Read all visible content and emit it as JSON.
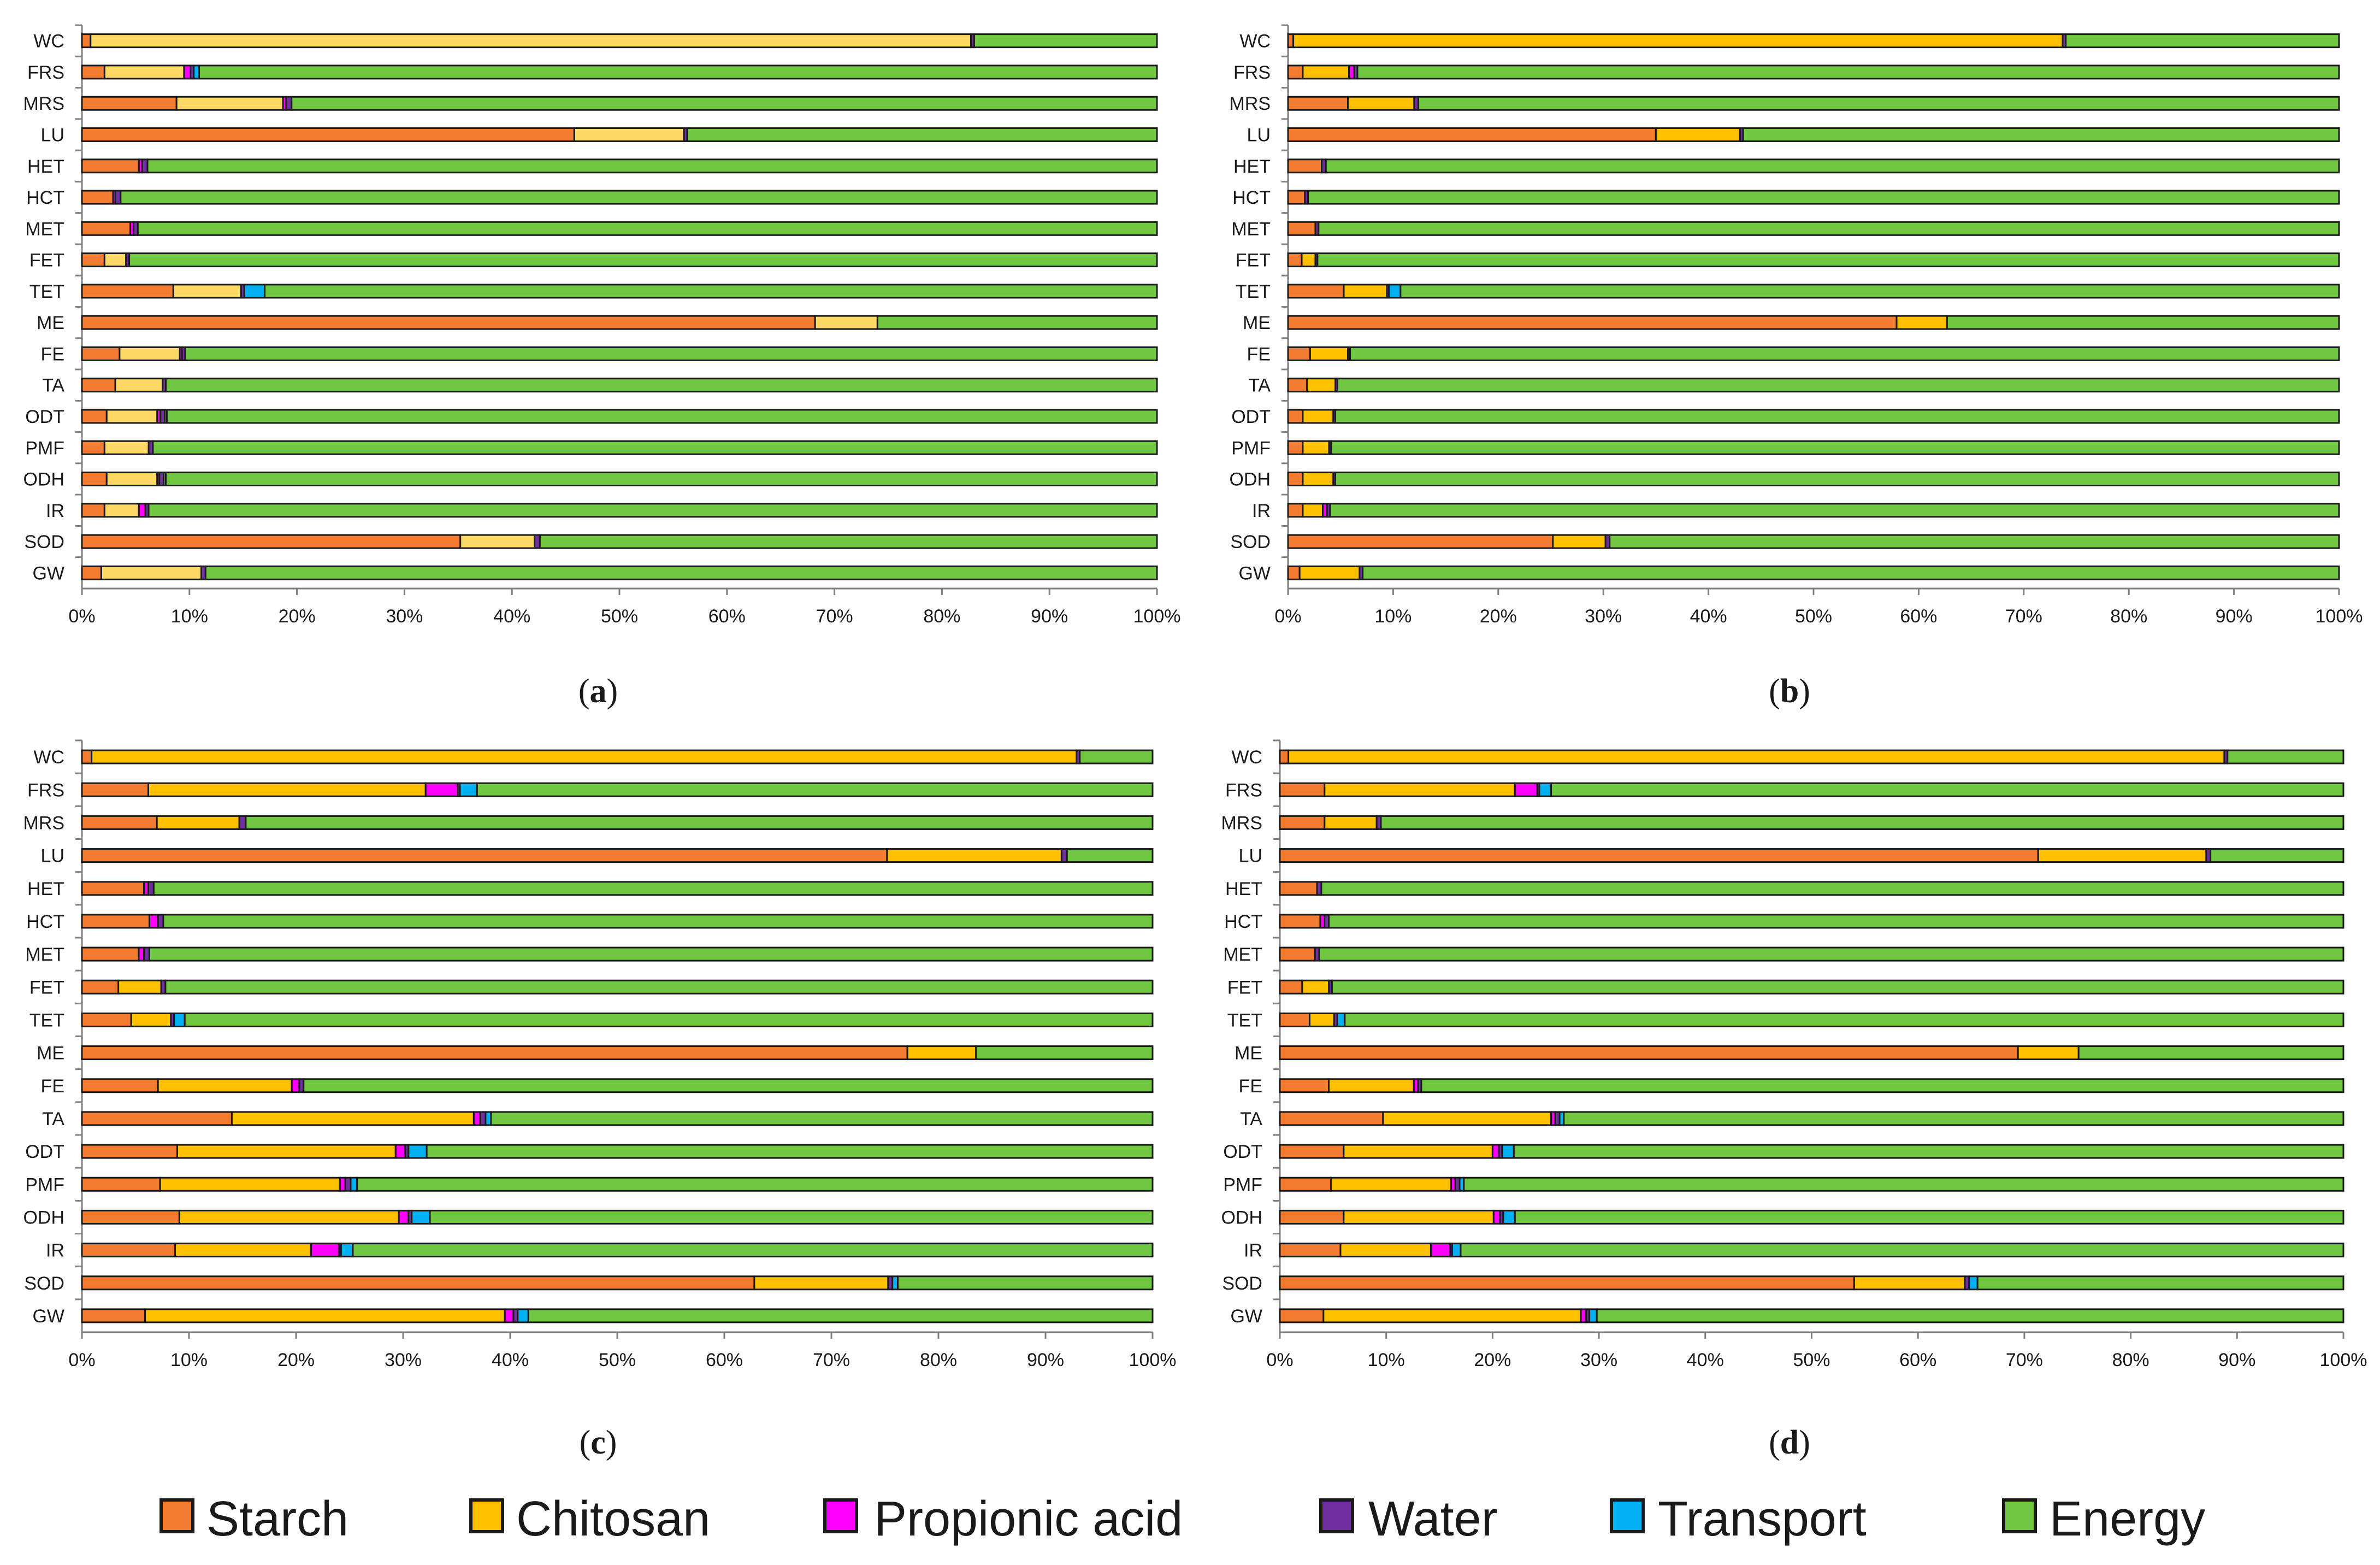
{
  "legend": [
    {
      "name": "Starch",
      "color": "#f47c30"
    },
    {
      "name": "Chitosan",
      "color": "#ffc000"
    },
    {
      "name": "Propionic acid",
      "color": "#ff00ff"
    },
    {
      "name": "Water",
      "color": "#7030a0"
    },
    {
      "name": "Transport",
      "color": "#00b0f0"
    },
    {
      "name": "Energy",
      "color": "#70c840"
    }
  ],
  "chart_data": [
    {
      "type": "bar",
      "panel": "a",
      "categories": [
        "WC",
        "FRS",
        "MRS",
        "LU",
        "HET",
        "HCT",
        "MET",
        "FET",
        "TET",
        "ME",
        "FE",
        "TA",
        "ODT",
        "PMF",
        "ODH",
        "IR",
        "SOD",
        "GW"
      ],
      "xlim": [
        0,
        100
      ],
      "xticks": [
        "0%",
        "10%",
        "20%",
        "30%",
        "40%",
        "50%",
        "60%",
        "70%",
        "80%",
        "90%",
        "100%"
      ],
      "series_colors": [
        "#f47c30",
        "#ffd966",
        "#ff00ff",
        "#7030a0",
        "#00b0f0",
        "#70c840"
      ],
      "series": [
        {
          "name": "Starch",
          "values": [
            0.8,
            2.1,
            8.8,
            45.8,
            5.3,
            2.9,
            4.5,
            2.1,
            8.5,
            68.2,
            3.5,
            3.1,
            2.3,
            2.1,
            2.3,
            2.1,
            35.2,
            1.8
          ]
        },
        {
          "name": "Chitosan",
          "values": [
            81.9,
            7.4,
            9.9,
            10.2,
            0.0,
            0.0,
            0.0,
            2.0,
            6.3,
            5.8,
            5.6,
            4.4,
            4.7,
            4.1,
            4.7,
            3.2,
            6.9,
            9.3
          ]
        },
        {
          "name": "Propionic acid",
          "values": [
            0.0,
            0.6,
            0.3,
            0.0,
            0.3,
            0.2,
            0.3,
            0.0,
            0.0,
            0.0,
            0.2,
            0.0,
            0.3,
            0.0,
            0.2,
            0.6,
            0.0,
            0.0
          ]
        },
        {
          "name": "Water",
          "values": [
            0.3,
            0.3,
            0.5,
            0.3,
            0.5,
            0.5,
            0.4,
            0.3,
            0.3,
            0.0,
            0.3,
            0.3,
            0.4,
            0.4,
            0.4,
            0.3,
            0.5,
            0.4
          ]
        },
        {
          "name": "Transport",
          "values": [
            0.0,
            0.5,
            0.0,
            0.0,
            0.0,
            0.0,
            0.0,
            0.0,
            1.9,
            0.0,
            0.0,
            0.0,
            0.2,
            0.0,
            0.2,
            0.0,
            0.0,
            0.0
          ]
        },
        {
          "name": "Energy",
          "values": [
            17.0,
            89.1,
            80.5,
            43.7,
            93.9,
            96.4,
            94.8,
            95.6,
            83.0,
            26.0,
            90.4,
            92.2,
            92.1,
            93.4,
            92.2,
            93.8,
            57.4,
            88.5
          ]
        }
      ]
    },
    {
      "type": "bar",
      "panel": "b",
      "categories": [
        "WC",
        "FRS",
        "MRS",
        "LU",
        "HET",
        "HCT",
        "MET",
        "FET",
        "TET",
        "ME",
        "FE",
        "TA",
        "ODT",
        "PMF",
        "ODH",
        "IR",
        "SOD",
        "GW"
      ],
      "xlim": [
        0,
        100
      ],
      "xticks": [
        "0%",
        "10%",
        "20%",
        "30%",
        "40%",
        "50%",
        "60%",
        "70%",
        "80%",
        "90%",
        "100%"
      ],
      "series_colors": [
        "#f47c30",
        "#ffc000",
        "#ff00ff",
        "#7030a0",
        "#00b0f0",
        "#70c840"
      ],
      "series": [
        {
          "name": "Starch",
          "values": [
            0.5,
            1.4,
            5.7,
            35.0,
            3.2,
            1.6,
            2.6,
            1.3,
            5.3,
            57.9,
            2.1,
            1.8,
            1.4,
            1.4,
            1.4,
            1.4,
            25.2,
            1.1
          ]
        },
        {
          "name": "Chitosan",
          "values": [
            73.2,
            4.4,
            6.3,
            8.0,
            0.0,
            0.0,
            0.0,
            1.3,
            4.1,
            4.8,
            3.6,
            2.7,
            2.9,
            2.5,
            2.9,
            1.9,
            5.0,
            5.7
          ]
        },
        {
          "name": "Propionic acid",
          "values": [
            0.0,
            0.5,
            0.0,
            0.0,
            0.0,
            0.0,
            0.0,
            0.0,
            0.0,
            0.0,
            0.0,
            0.0,
            0.0,
            0.0,
            0.0,
            0.4,
            0.0,
            0.0
          ]
        },
        {
          "name": "Water",
          "values": [
            0.3,
            0.3,
            0.4,
            0.3,
            0.4,
            0.3,
            0.3,
            0.2,
            0.2,
            0.0,
            0.2,
            0.2,
            0.2,
            0.2,
            0.2,
            0.3,
            0.4,
            0.3
          ]
        },
        {
          "name": "Transport",
          "values": [
            0.0,
            0.0,
            0.0,
            0.0,
            0.0,
            0.0,
            0.0,
            0.0,
            1.1,
            0.0,
            0.0,
            0.0,
            0.0,
            0.0,
            0.0,
            0.0,
            0.0,
            0.0
          ]
        },
        {
          "name": "Energy",
          "values": [
            26.0,
            93.4,
            87.6,
            56.7,
            96.4,
            98.1,
            97.1,
            97.2,
            89.3,
            37.3,
            94.1,
            95.3,
            95.5,
            95.9,
            95.5,
            96.0,
            69.4,
            92.9
          ]
        }
      ]
    },
    {
      "type": "bar",
      "panel": "c",
      "categories": [
        "WC",
        "FRS",
        "MRS",
        "LU",
        "HET",
        "HCT",
        "MET",
        "FET",
        "TET",
        "ME",
        "FE",
        "TA",
        "ODT",
        "PMF",
        "ODH",
        "IR",
        "SOD",
        "GW"
      ],
      "xlim": [
        0,
        100
      ],
      "xticks": [
        "0%",
        "10%",
        "20%",
        "30%",
        "40%",
        "50%",
        "60%",
        "70%",
        "80%",
        "90%",
        "100%"
      ],
      "series_colors": [
        "#f47c30",
        "#ffc000",
        "#ff00ff",
        "#7030a0",
        "#00b0f0",
        "#70c840"
      ],
      "series": [
        {
          "name": "Starch",
          "values": [
            0.9,
            6.2,
            7.0,
            75.2,
            5.8,
            6.3,
            5.3,
            3.4,
            4.6,
            77.1,
            7.1,
            14.0,
            8.9,
            7.3,
            9.1,
            8.7,
            62.8,
            5.9
          ]
        },
        {
          "name": "Chitosan",
          "values": [
            92.0,
            25.9,
            7.7,
            16.3,
            0.0,
            0.0,
            0.0,
            4.0,
            3.7,
            6.4,
            12.5,
            22.6,
            20.4,
            16.8,
            20.5,
            12.7,
            12.5,
            33.6
          ]
        },
        {
          "name": "Propionic acid",
          "values": [
            0.0,
            3.0,
            0.0,
            0.0,
            0.4,
            0.8,
            0.5,
            0.0,
            0.0,
            0.0,
            0.7,
            0.6,
            0.9,
            0.5,
            0.9,
            2.6,
            0.0,
            0.8
          ]
        },
        {
          "name": "Water",
          "values": [
            0.3,
            0.2,
            0.6,
            0.5,
            0.5,
            0.5,
            0.5,
            0.4,
            0.3,
            0.0,
            0.4,
            0.5,
            0.3,
            0.5,
            0.3,
            0.2,
            0.4,
            0.4
          ]
        },
        {
          "name": "Transport",
          "values": [
            0.0,
            1.6,
            0.0,
            0.0,
            0.0,
            0.0,
            0.0,
            0.0,
            1.0,
            0.0,
            0.0,
            0.5,
            1.7,
            0.6,
            1.7,
            1.1,
            0.5,
            1.0
          ]
        },
        {
          "name": "Energy",
          "values": [
            6.8,
            63.1,
            84.7,
            8.0,
            93.3,
            92.4,
            93.7,
            92.2,
            90.4,
            16.5,
            79.3,
            61.8,
            67.8,
            74.3,
            67.5,
            74.7,
            23.8,
            58.3
          ]
        }
      ]
    },
    {
      "type": "bar",
      "panel": "d",
      "categories": [
        "WC",
        "FRS",
        "MRS",
        "LU",
        "HET",
        "HCT",
        "MET",
        "FET",
        "TET",
        "ME",
        "FE",
        "TA",
        "ODT",
        "PMF",
        "ODH",
        "IR",
        "SOD",
        "GW"
      ],
      "xlim": [
        0,
        100
      ],
      "xticks": [
        "0%",
        "10%",
        "20%",
        "30%",
        "40%",
        "50%",
        "60%",
        "70%",
        "80%",
        "90%",
        "100%"
      ],
      "series_colors": [
        "#f47c30",
        "#ffc000",
        "#ff00ff",
        "#7030a0",
        "#00b0f0",
        "#70c840"
      ],
      "series": [
        {
          "name": "Starch",
          "values": [
            0.8,
            4.2,
            4.2,
            71.3,
            3.5,
            3.8,
            3.3,
            2.1,
            2.8,
            69.4,
            4.6,
            9.7,
            6.0,
            4.8,
            6.0,
            5.7,
            54.0,
            4.1
          ]
        },
        {
          "name": "Chitosan",
          "values": [
            88.0,
            17.9,
            4.9,
            15.8,
            0.0,
            0.0,
            0.0,
            2.5,
            2.3,
            5.7,
            8.0,
            15.8,
            14.0,
            11.3,
            14.1,
            8.5,
            10.4,
            24.2
          ]
        },
        {
          "name": "Propionic acid",
          "values": [
            0.0,
            2.1,
            0.0,
            0.0,
            0.0,
            0.4,
            0.0,
            0.0,
            0.0,
            0.0,
            0.4,
            0.4,
            0.6,
            0.4,
            0.6,
            1.8,
            0.0,
            0.5
          ]
        },
        {
          "name": "Water",
          "values": [
            0.3,
            0.2,
            0.4,
            0.4,
            0.4,
            0.4,
            0.4,
            0.3,
            0.3,
            0.0,
            0.3,
            0.4,
            0.3,
            0.4,
            0.3,
            0.2,
            0.4,
            0.3
          ]
        },
        {
          "name": "Transport",
          "values": [
            0.0,
            1.1,
            0.0,
            0.0,
            0.0,
            0.0,
            0.0,
            0.0,
            0.7,
            0.0,
            0.0,
            0.4,
            1.1,
            0.4,
            1.1,
            0.8,
            0.8,
            0.7
          ]
        },
        {
          "name": "Energy",
          "values": [
            10.9,
            74.5,
            90.5,
            12.5,
            96.1,
            95.4,
            96.3,
            95.1,
            93.9,
            24.9,
            86.7,
            73.3,
            78.0,
            82.7,
            77.9,
            83.0,
            34.4,
            70.2
          ]
        }
      ]
    }
  ]
}
